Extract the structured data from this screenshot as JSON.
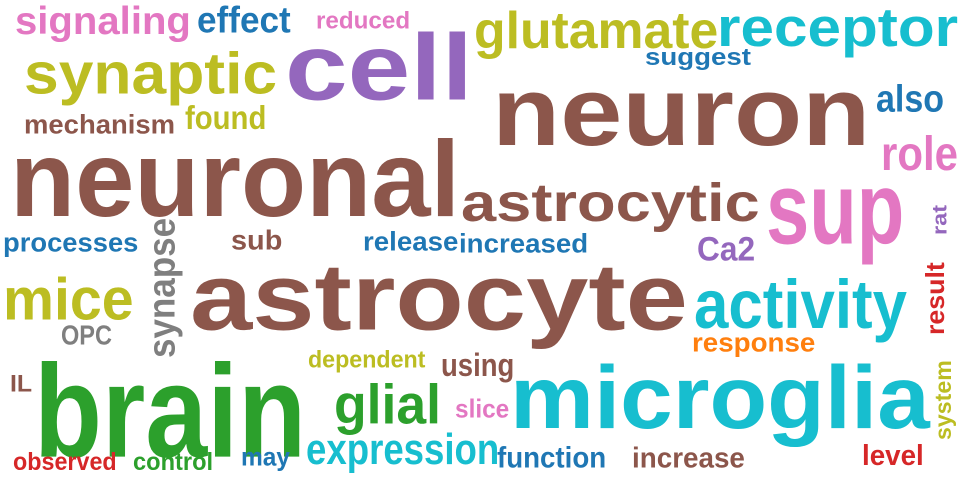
{
  "words": [
    {
      "text": "astrocyte",
      "color": "#8c564b"
    },
    {
      "text": "neuron",
      "color": "#8c564b"
    },
    {
      "text": "neuronal",
      "color": "#8c564b"
    },
    {
      "text": "cell",
      "color": "#9467bd"
    },
    {
      "text": "brain",
      "color": "#2ca02c"
    },
    {
      "text": "microglia",
      "color": "#17becf"
    },
    {
      "text": "astrocytic",
      "color": "#8c564b"
    },
    {
      "text": "sup",
      "color": "#e377c2"
    },
    {
      "text": "receptor",
      "color": "#17becf"
    },
    {
      "text": "glutamate",
      "color": "#bcbd22"
    },
    {
      "text": "synaptic",
      "color": "#bcbd22"
    },
    {
      "text": "activity",
      "color": "#17becf"
    },
    {
      "text": "mice",
      "color": "#bcbd22"
    },
    {
      "text": "signaling",
      "color": "#e377c2"
    },
    {
      "text": "glial",
      "color": "#2ca02c"
    },
    {
      "text": "expression",
      "color": "#17becf"
    },
    {
      "text": "synapse",
      "color": "#7f7f7f"
    },
    {
      "text": "effect",
      "color": "#1f77b4"
    },
    {
      "text": "role",
      "color": "#e377c2"
    },
    {
      "text": "also",
      "color": "#1f77b4"
    },
    {
      "text": "processes",
      "color": "#1f77b4"
    },
    {
      "text": "found",
      "color": "#bcbd22"
    },
    {
      "text": "mechanism",
      "color": "#8c564b"
    },
    {
      "text": "release",
      "color": "#1f77b4"
    },
    {
      "text": "increased",
      "color": "#1f77b4"
    },
    {
      "text": "function",
      "color": "#1f77b4"
    },
    {
      "text": "increase",
      "color": "#8c564b"
    },
    {
      "text": "Ca2",
      "color": "#9467bd"
    },
    {
      "text": "response",
      "color": "#ff7f0e"
    },
    {
      "text": "using",
      "color": "#8c564b"
    },
    {
      "text": "result",
      "color": "#d62728"
    },
    {
      "text": "level",
      "color": "#d62728"
    },
    {
      "text": "reduced",
      "color": "#e377c2"
    },
    {
      "text": "suggest",
      "color": "#1f77b4"
    },
    {
      "text": "sub",
      "color": "#8c564b"
    },
    {
      "text": "dependent",
      "color": "#bcbd22"
    },
    {
      "text": "OPC",
      "color": "#7f7f7f"
    },
    {
      "text": "slice",
      "color": "#e377c2"
    },
    {
      "text": "observed",
      "color": "#d62728"
    },
    {
      "text": "control",
      "color": "#2ca02c"
    },
    {
      "text": "may",
      "color": "#1f77b4"
    },
    {
      "text": "rat",
      "color": "#9467bd"
    },
    {
      "text": "system",
      "color": "#bcbd22"
    },
    {
      "text": "IL",
      "color": "#8c564b"
    }
  ]
}
